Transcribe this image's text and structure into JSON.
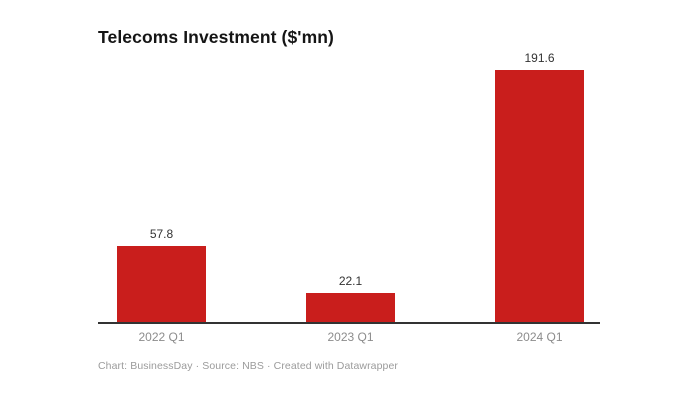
{
  "title": "Telecoms Investment ($'mn)",
  "footer": "Chart: BusinessDay · Source: NBS · Created with Datawrapper",
  "colors": {
    "bar": "#c91e1c",
    "axis": "#333333",
    "value_label": "#333333",
    "tick_label": "#8c8c8c",
    "footer_text": "#9b9b9b",
    "title_text": "#151515",
    "background": "#ffffff"
  },
  "chart_data": {
    "type": "bar",
    "title": "Telecoms Investment ($'mn)",
    "categories": [
      "2022 Q1",
      "2023 Q1",
      "2024 Q1"
    ],
    "values": [
      57.8,
      22.1,
      191.6
    ],
    "value_labels": [
      "57.8",
      "22.1",
      "191.6"
    ],
    "xlabel": "",
    "ylabel": "",
    "ylim": [
      0,
      200
    ],
    "grid": false,
    "legend": "none",
    "bar_color": "#c91e1c",
    "attribution": "Chart: BusinessDay · Source: NBS · Created with Datawrapper"
  }
}
